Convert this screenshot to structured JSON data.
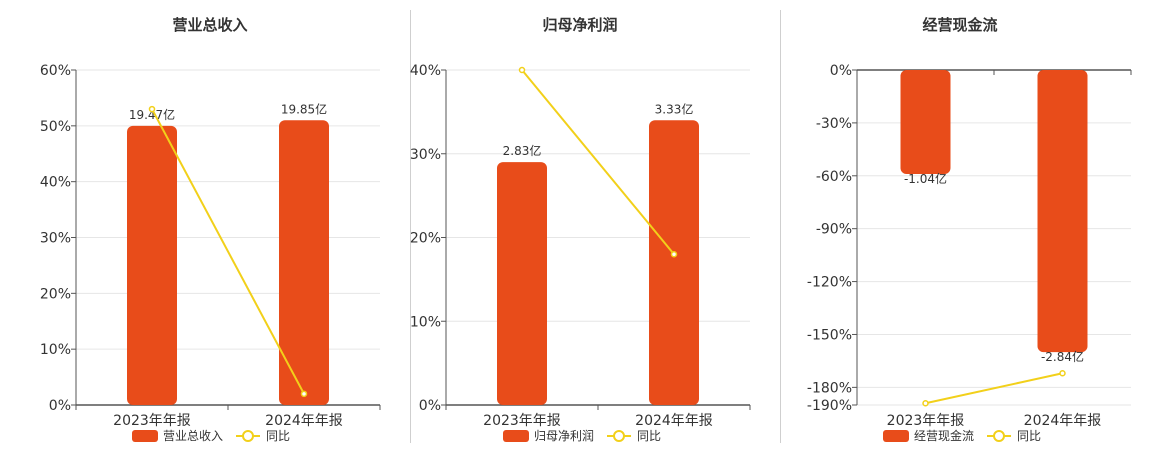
{
  "colors": {
    "bar": "#e84c1a",
    "line": "#f2d01a",
    "grid": "#e6e6e6",
    "axis": "#555555",
    "text": "#333333"
  },
  "chart_data": [
    {
      "type": "bar",
      "title": "营业总收入",
      "categories": [
        "2023年年报",
        "2024年年报"
      ],
      "bar_labels": [
        "19.47亿",
        "19.85亿"
      ],
      "ylim": [
        0,
        60
      ],
      "yticks": [
        0,
        10,
        20,
        30,
        40,
        50,
        60
      ],
      "ytick_labels": [
        "0%",
        "10%",
        "20%",
        "30%",
        "40%",
        "50%",
        "60%"
      ],
      "series": [
        {
          "name": "营业总收入",
          "kind": "bar",
          "values": [
            50,
            51
          ]
        },
        {
          "name": "同比",
          "kind": "line",
          "values": [
            53,
            2
          ]
        }
      ],
      "grid": true,
      "legend": "bottom-center"
    },
    {
      "type": "bar",
      "title": "归母净利润",
      "categories": [
        "2023年年报",
        "2024年年报"
      ],
      "bar_labels": [
        "2.83亿",
        "3.33亿"
      ],
      "ylim": [
        0,
        40
      ],
      "yticks": [
        0,
        10,
        20,
        30,
        40
      ],
      "ytick_labels": [
        "0%",
        "10%",
        "20%",
        "30%",
        "40%"
      ],
      "series": [
        {
          "name": "归母净利润",
          "kind": "bar",
          "values": [
            29,
            34
          ]
        },
        {
          "name": "同比",
          "kind": "line",
          "values": [
            40,
            18
          ]
        }
      ],
      "grid": true,
      "legend": "bottom-center"
    },
    {
      "type": "bar",
      "title": "经营现金流",
      "categories": [
        "2023年年报",
        "2024年年报"
      ],
      "bar_labels": [
        "-1.04亿",
        "-2.84亿"
      ],
      "ylim": [
        -190,
        0
      ],
      "yticks": [
        0,
        -30,
        -60,
        -90,
        -120,
        -150,
        -180,
        -190
      ],
      "ytick_labels": [
        "0%",
        "-30%",
        "-60%",
        "-90%",
        "-120%",
        "-150%",
        "-180%",
        "-190%"
      ],
      "series": [
        {
          "name": "经营现金流",
          "kind": "bar",
          "values": [
            -59,
            -160
          ]
        },
        {
          "name": "同比",
          "kind": "line",
          "values": [
            -189,
            -172
          ]
        }
      ],
      "grid": true,
      "legend": "bottom-center"
    }
  ]
}
